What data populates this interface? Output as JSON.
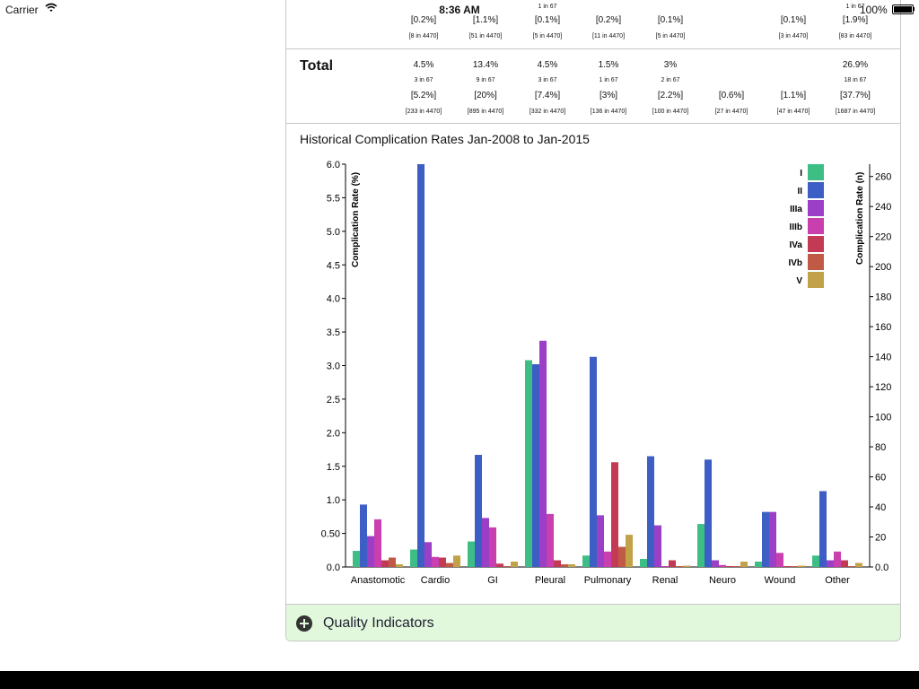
{
  "status_bar": {
    "carrier": "Carrier",
    "time": "8:36 AM",
    "battery": "100%"
  },
  "top_row": [
    {
      "col": 0,
      "pct": "",
      "n": "",
      "bpct": "[0.2%]",
      "bn": "[8 in 4470]"
    },
    {
      "col": 1,
      "pct": "",
      "n": "",
      "bpct": "[1.1%]",
      "bn": "[51 in 4470]"
    },
    {
      "col": 2,
      "pct": "",
      "n": "1 in 67",
      "bpct": "[0.1%]",
      "bn": "[5 in 4470]"
    },
    {
      "col": 3,
      "pct": "",
      "n": "",
      "bpct": "[0.2%]",
      "bn": "[11 in 4470]"
    },
    {
      "col": 4,
      "pct": "",
      "n": "",
      "bpct": "[0.1%]",
      "bn": "[5 in 4470]"
    },
    {
      "col": 6,
      "pct": "",
      "n": "",
      "bpct": "[0.1%]",
      "bn": "[3 in 4470]"
    },
    {
      "col": 7,
      "pct": "",
      "n": "1 in 67",
      "bpct": "[1.9%]",
      "bn": "[83 in 4470]"
    }
  ],
  "total_row": {
    "label": "Total",
    "cells": [
      {
        "col": 0,
        "pct": "4.5%",
        "n": "3 in 67",
        "bpct": "[5.2%]",
        "bn": "[233 in 4470]"
      },
      {
        "col": 1,
        "pct": "13.4%",
        "n": "9 in 67",
        "bpct": "[20%]",
        "bn": "[895 in 4470]"
      },
      {
        "col": 2,
        "pct": "4.5%",
        "n": "3 in 67",
        "bpct": "[7.4%]",
        "bn": "[332 in 4470]"
      },
      {
        "col": 3,
        "pct": "1.5%",
        "n": "1 in 67",
        "bpct": "[3%]",
        "bn": "[136 in 4470]"
      },
      {
        "col": 4,
        "pct": "3%",
        "n": "2 in 67",
        "bpct": "[2.2%]",
        "bn": "[100 in 4470]"
      },
      {
        "col": 5,
        "pct": "",
        "n": "",
        "bpct": "[0.6%]",
        "bn": "[27 in 4470]"
      },
      {
        "col": 6,
        "pct": "",
        "n": "",
        "bpct": "[1.1%]",
        "bn": "[47 in 4470]"
      },
      {
        "col": 7,
        "pct": "26.9%",
        "n": "18 in 67",
        "bpct": "[37.7%]",
        "bn": "[1687 in 4470]"
      }
    ]
  },
  "chart_data": {
    "type": "bar",
    "title": "Historical Complication Rates Jan-2008 to Jan-2015",
    "ylabel": "Complication Rate (%)",
    "y2label": "Complication Rate (n)",
    "ylim": [
      0,
      6.0
    ],
    "y2lim": [
      0,
      268.2
    ],
    "yticks": [
      "0.0",
      "0.50",
      "1.0",
      "1.5",
      "2.0",
      "2.5",
      "3.0",
      "3.5",
      "4.0",
      "4.5",
      "5.0",
      "5.5",
      "6.0"
    ],
    "y2ticks": [
      "0.0",
      "20",
      "40",
      "60",
      "80",
      "100",
      "120",
      "140",
      "160",
      "180",
      "200",
      "220",
      "240",
      "260"
    ],
    "legend_position": "top-right",
    "categories": [
      "Anastomotic",
      "Cardio",
      "GI",
      "Pleural",
      "Pulmonary",
      "Renal",
      "Neuro",
      "Wound",
      "Other"
    ],
    "series": [
      {
        "name": "I",
        "color": "#3dbe85",
        "values": [
          0.24,
          0.26,
          0.38,
          3.08,
          0.17,
          0.12,
          0.64,
          0.08,
          0.17
        ]
      },
      {
        "name": "II",
        "color": "#3d5ec4",
        "values": [
          0.93,
          6.0,
          1.67,
          3.02,
          3.13,
          1.65,
          1.6,
          0.82,
          1.13
        ]
      },
      {
        "name": "IIIa",
        "color": "#9b3fc6",
        "values": [
          0.46,
          0.37,
          0.73,
          3.37,
          0.77,
          0.62,
          0.1,
          0.82,
          0.1
        ]
      },
      {
        "name": "IIIb",
        "color": "#c93fb0",
        "values": [
          0.71,
          0.15,
          0.59,
          0.79,
          0.23,
          0.0,
          0.03,
          0.21,
          0.23
        ]
      },
      {
        "name": "IVa",
        "color": "#c33a57",
        "values": [
          0.1,
          0.14,
          0.05,
          0.1,
          1.56,
          0.1,
          0.0,
          0.0,
          0.1
        ]
      },
      {
        "name": "IVb",
        "color": "#c15a45",
        "values": [
          0.14,
          0.06,
          0.0,
          0.04,
          0.3,
          0.0,
          0.0,
          0.0,
          0.0
        ]
      },
      {
        "name": "V",
        "color": "#c2a248",
        "values": [
          0.04,
          0.17,
          0.08,
          0.04,
          0.48,
          0.02,
          0.08,
          0.02,
          0.06
        ]
      }
    ]
  },
  "quality_indicators": {
    "label": "Quality Indicators"
  },
  "colors": {
    "qi_background": "#e1f8dc",
    "panel_border": "#c8c8c8"
  }
}
